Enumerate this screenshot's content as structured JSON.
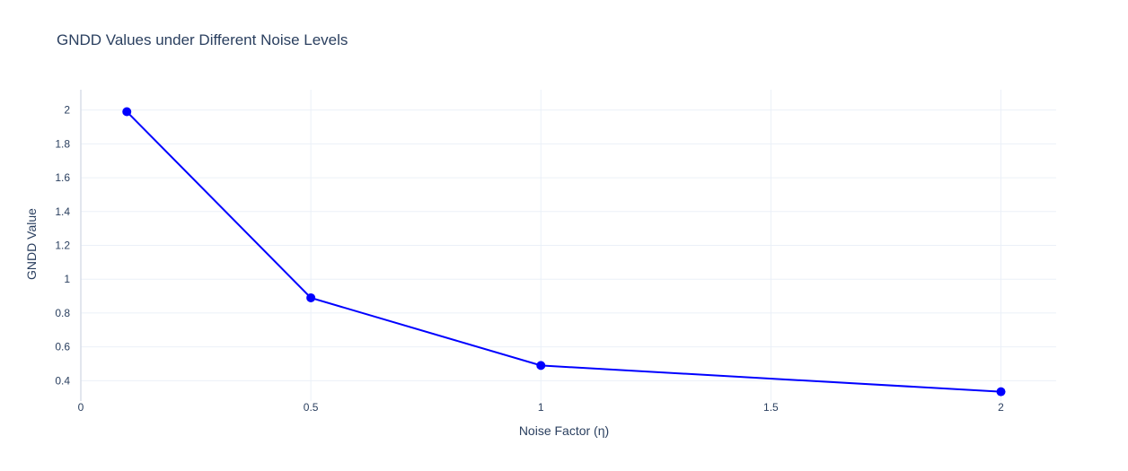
{
  "chart_data": {
    "type": "line",
    "title": "GNDD Values under Different Noise Levels",
    "xlabel": "Noise Factor (η)",
    "ylabel": "GNDD Value",
    "xlim": [
      0,
      2.12
    ],
    "ylim": [
      0.28,
      2.12
    ],
    "xticks": [
      "0",
      "0.5",
      "1",
      "1.5",
      "2"
    ],
    "yticks": [
      "0.4",
      "0.6",
      "0.8",
      "1",
      "1.2",
      "1.4",
      "1.6",
      "1.8",
      "2"
    ],
    "grid": true,
    "series": [
      {
        "x": [
          0.1,
          0.5,
          1,
          2
        ],
        "y": [
          1.99,
          0.89,
          0.49,
          0.335
        ],
        "color": "#0000ff",
        "mode": "lines+markers"
      }
    ]
  }
}
